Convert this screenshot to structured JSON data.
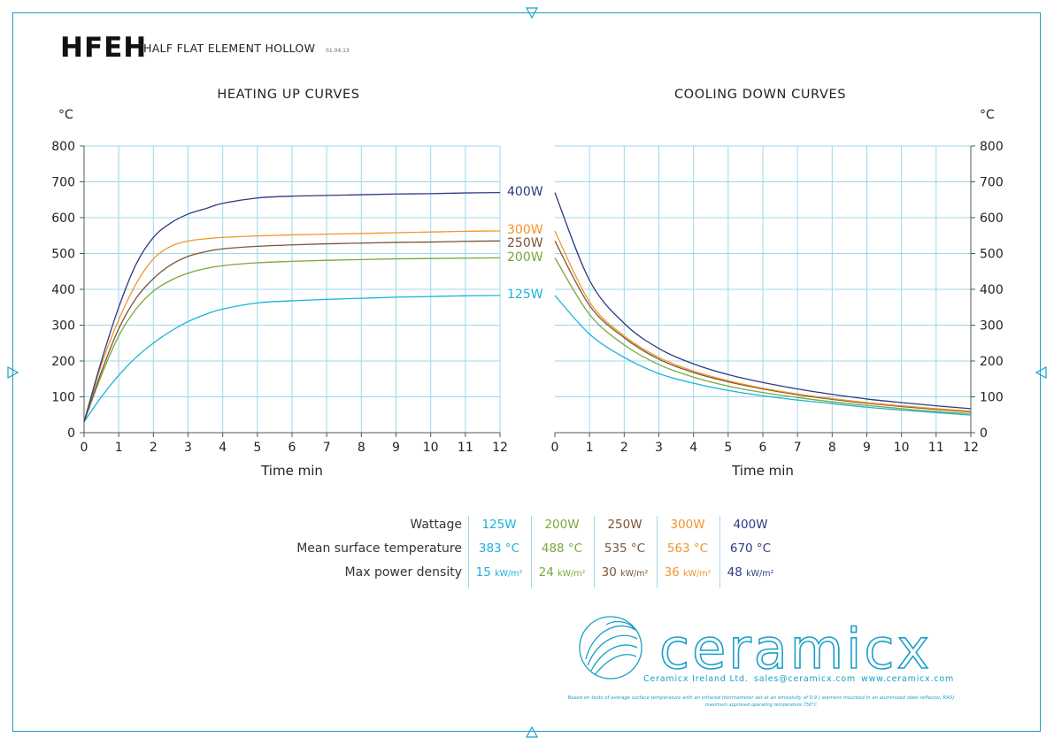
{
  "header": {
    "code": "HFEH",
    "name": "HALF FLAT ELEMENT HOLLOW",
    "date": "01.04.13"
  },
  "colors": {
    "125W": "#1ab2d8",
    "200W": "#79a83c",
    "250W": "#7b5536",
    "300W": "#f2952a",
    "400W": "#2d3b84",
    "accent": "#1aa0c8",
    "grid": "#9fd7ea"
  },
  "chart_data": [
    {
      "type": "line",
      "title": "HEATING UP CURVES",
      "xlabel": "Time min",
      "ylabel": "°C",
      "xlim": [
        0,
        12
      ],
      "ylim": [
        0,
        800
      ],
      "x_ticks": [
        "0",
        "1",
        "2",
        "3",
        "4",
        "5",
        "6",
        "7",
        "8",
        "9",
        "10",
        "11",
        "12"
      ],
      "y_ticks": [
        "0",
        "100",
        "200",
        "300",
        "400",
        "500",
        "600",
        "700",
        "800"
      ],
      "grid": true,
      "series": [
        {
          "name": "125W",
          "x": [
            0,
            0.5,
            1,
            1.5,
            2,
            2.5,
            3,
            3.5,
            4,
            5,
            6,
            7,
            8,
            9,
            10,
            11,
            12
          ],
          "y": [
            30,
            100,
            160,
            210,
            250,
            283,
            310,
            330,
            345,
            362,
            368,
            372,
            375,
            378,
            380,
            382,
            383
          ]
        },
        {
          "name": "200W",
          "x": [
            0,
            0.5,
            1,
            1.5,
            2,
            2.5,
            3,
            3.5,
            4,
            5,
            6,
            7,
            8,
            9,
            10,
            11,
            12
          ],
          "y": [
            30,
            160,
            270,
            345,
            395,
            425,
            445,
            458,
            466,
            474,
            478,
            481,
            483,
            485,
            486,
            487,
            488
          ]
        },
        {
          "name": "250W",
          "x": [
            0,
            0.5,
            1,
            1.5,
            2,
            2.5,
            3,
            3.5,
            4,
            5,
            6,
            7,
            8,
            9,
            10,
            11,
            12
          ],
          "y": [
            30,
            170,
            290,
            375,
            430,
            468,
            492,
            505,
            513,
            520,
            524,
            527,
            529,
            531,
            532,
            534,
            535
          ]
        },
        {
          "name": "300W",
          "x": [
            0,
            0.5,
            1,
            1.5,
            2,
            2.5,
            3,
            3.5,
            4,
            5,
            6,
            7,
            8,
            9,
            10,
            11,
            12
          ],
          "y": [
            30,
            190,
            315,
            415,
            485,
            520,
            535,
            541,
            545,
            549,
            552,
            554,
            556,
            558,
            560,
            562,
            563
          ]
        },
        {
          "name": "400W",
          "x": [
            0,
            0.5,
            1,
            1.5,
            2,
            2.5,
            3,
            3.5,
            4,
            5,
            6,
            7,
            8,
            9,
            10,
            11,
            12
          ],
          "y": [
            30,
            200,
            350,
            470,
            545,
            585,
            610,
            625,
            640,
            655,
            660,
            662,
            664,
            666,
            667,
            669,
            670
          ]
        }
      ],
      "series_labels": [
        "400W",
        "300W",
        "250W",
        "200W",
        "125W"
      ]
    },
    {
      "type": "line",
      "title": "COOLING DOWN CURVES",
      "xlabel": "Time min",
      "ylabel": "°C",
      "xlim": [
        0,
        12
      ],
      "ylim": [
        0,
        800
      ],
      "x_ticks": [
        "0",
        "1",
        "2",
        "3",
        "4",
        "5",
        "6",
        "7",
        "8",
        "9",
        "10",
        "11",
        "12"
      ],
      "y_ticks": [
        "0",
        "100",
        "200",
        "300",
        "400",
        "500",
        "600",
        "700",
        "800"
      ],
      "grid": true,
      "series": [
        {
          "name": "125W",
          "x": [
            0,
            1,
            2,
            3,
            4,
            5,
            6,
            7,
            8,
            9,
            10,
            11,
            12
          ],
          "y": [
            383,
            275,
            210,
            165,
            138,
            118,
            103,
            91,
            81,
            71,
            63,
            56,
            49
          ]
        },
        {
          "name": "200W",
          "x": [
            0,
            1,
            2,
            3,
            4,
            5,
            6,
            7,
            8,
            9,
            10,
            11,
            12
          ],
          "y": [
            488,
            330,
            245,
            190,
            155,
            130,
            112,
            98,
            86,
            76,
            67,
            59,
            53
          ]
        },
        {
          "name": "250W",
          "x": [
            0,
            1,
            2,
            3,
            4,
            5,
            6,
            7,
            8,
            9,
            10,
            11,
            12
          ],
          "y": [
            535,
            355,
            265,
            205,
            168,
            142,
            122,
            106,
            93,
            82,
            73,
            65,
            58
          ]
        },
        {
          "name": "300W",
          "x": [
            0,
            1,
            2,
            3,
            4,
            5,
            6,
            7,
            8,
            9,
            10,
            11,
            12
          ],
          "y": [
            563,
            365,
            270,
            210,
            172,
            145,
            124,
            108,
            95,
            84,
            75,
            67,
            60
          ]
        },
        {
          "name": "400W",
          "x": [
            0,
            1,
            2,
            3,
            4,
            5,
            6,
            7,
            8,
            9,
            10,
            11,
            12
          ],
          "y": [
            670,
            425,
            305,
            235,
            192,
            162,
            140,
            122,
            107,
            94,
            84,
            75,
            67
          ]
        }
      ]
    }
  ],
  "table": {
    "labels": [
      "Wattage",
      "Mean surface temperature",
      "Max power density"
    ],
    "columns": [
      {
        "wattage": "125W",
        "temp": "383 °C",
        "density": "15",
        "unit": "kW/m²"
      },
      {
        "wattage": "200W",
        "temp": "488 °C",
        "density": "24",
        "unit": "kW/m²"
      },
      {
        "wattage": "250W",
        "temp": "535 °C",
        "density": "30",
        "unit": "kW/m²"
      },
      {
        "wattage": "300W",
        "temp": "563 °C",
        "density": "36",
        "unit": "kW/m²"
      },
      {
        "wattage": "400W",
        "temp": "670 °C",
        "density": "48",
        "unit": "kW/m²"
      }
    ]
  },
  "brand": {
    "logo_text": "ceramicx",
    "company": "Ceramicx Ireland Ltd.",
    "email": "sales@ceramicx.com",
    "website": "www.ceramicx.com"
  },
  "footnote": {
    "line1": "Based on tests of average surface temperature with an infrared thermometer set at an emissivity of 0.9 ( element mounted in an aluminised steel reflector, RAS)",
    "line2": "maximum approved operating temperature 750°C"
  }
}
